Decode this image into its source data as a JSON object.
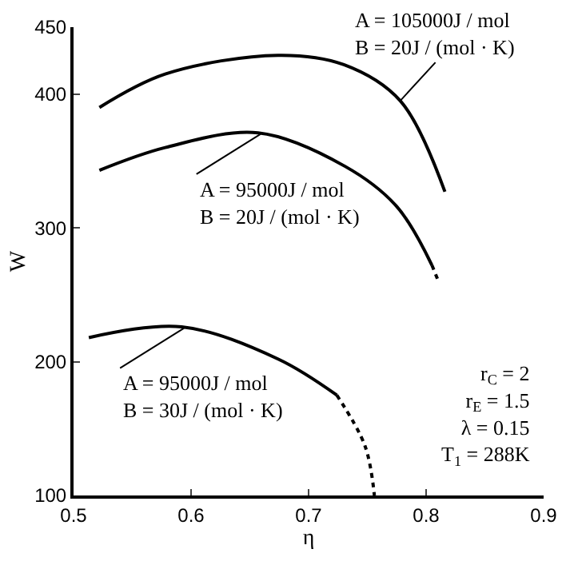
{
  "chart_data": {
    "type": "line",
    "xlabel": "η",
    "ylabel": "W",
    "xlim": [
      0.5,
      0.9
    ],
    "xticks": [
      0.5,
      0.6,
      0.7,
      0.8,
      0.9
    ],
    "ylim": [
      100,
      450
    ],
    "yticks": [
      100,
      200,
      300,
      400,
      450
    ],
    "grid": false,
    "marker": "none",
    "series": [
      {
        "color": "#000000",
        "line_style": "solid",
        "x": [
          0.522,
          0.578,
          0.674,
          0.73,
          0.778,
          0.816
        ],
        "values": [
          390,
          415,
          429,
          422,
          395,
          327
        ]
      },
      {
        "color": "#000000",
        "line_style": "solid",
        "x": [
          0.522,
          0.578,
          0.657,
          0.731,
          0.775,
          0.805
        ],
        "values": [
          343,
          360,
          371,
          346,
          316,
          272
        ]
      },
      {
        "color": "#000000",
        "line_style": "dotted",
        "x": [
          0.805,
          0.811
        ],
        "values": [
          272,
          259
        ]
      },
      {
        "color": "#000000",
        "line_style": "solid",
        "x": [
          0.513,
          0.592,
          0.674,
          0.724
        ],
        "values": [
          218,
          226,
          202,
          175
        ]
      },
      {
        "color": "#000000",
        "line_style": "dotted",
        "x": [
          0.724,
          0.748,
          0.756
        ],
        "values": [
          175,
          137,
          100
        ]
      }
    ],
    "annotations": [
      {
        "text": "A = 105000J / mol\nB = 20J / (mol · K)",
        "x": 0.778,
        "y": 395
      },
      {
        "text": "A = 95000J / mol\nB = 20J / (mol · K)",
        "x": 0.659,
        "y": 370
      },
      {
        "text": "A = 95000J / mol\nB = 30J / (mol · K)",
        "x": 0.594,
        "y": 225
      },
      "r$_{C}$ = 2\nr$_{E}$ = 1.5\nλ = 0.15\nT$_{1}$ = 288K"
    ]
  }
}
